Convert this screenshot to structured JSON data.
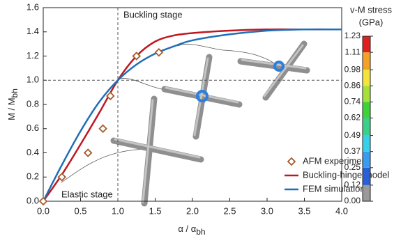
{
  "chart_data": {
    "type": "line",
    "xlabel": {
      "text": "α / α",
      "subscript": "bh"
    },
    "ylabel": {
      "text": "M / M",
      "subscript": "bh"
    },
    "xlim": [
      0,
      4
    ],
    "ylim": [
      0,
      1.6
    ],
    "xticks": [
      {
        "value": 0,
        "label": "0.0"
      },
      {
        "value": 0.5,
        "label": "0.5"
      },
      {
        "value": 1,
        "label": "1.0"
      },
      {
        "value": 1.5,
        "label": "1.5"
      },
      {
        "value": 2,
        "label": "2.0"
      },
      {
        "value": 2.5,
        "label": "2.5"
      },
      {
        "value": 3,
        "label": "3.0"
      },
      {
        "value": 3.5,
        "label": "3.5"
      },
      {
        "value": 4,
        "label": "4.0"
      }
    ],
    "yticks": [
      {
        "value": 0,
        "label": "0.0"
      },
      0.2,
      0.4,
      0.6,
      0.8,
      {
        "value": 1,
        "label": "1.0"
      },
      1.2,
      1.4,
      1.6
    ],
    "reference_lines": {
      "x": 1,
      "y": 1
    },
    "annotations": [
      "Buckling stage",
      "Elastic stage"
    ],
    "legend": "lower right",
    "series": [
      {
        "name": "AFM experiment",
        "type": "scatter",
        "color": "#a65a2a",
        "x": [
          0,
          0.25,
          0.6,
          0.8,
          0.9,
          1.25,
          1.55
        ],
        "values": [
          0,
          0.2,
          0.4,
          0.6,
          0.87,
          1.2,
          1.23
        ]
      },
      {
        "name": "Buckling-hinge model",
        "type": "line",
        "color": "#c0161f",
        "x": [
          0,
          0.25,
          0.5,
          0.75,
          1,
          1.25,
          1.5,
          1.75,
          2,
          2.5,
          3,
          3.5,
          4
        ],
        "values": [
          0,
          0.22,
          0.47,
          0.73,
          1.0,
          1.2,
          1.32,
          1.37,
          1.39,
          1.41,
          1.42,
          1.42,
          1.42
        ]
      },
      {
        "name": "FEM simulation",
        "type": "line",
        "color": "#1f6fb8",
        "x": [
          0,
          0.25,
          0.5,
          0.75,
          1,
          1.25,
          1.5,
          1.75,
          2,
          2.5,
          3,
          3.5,
          4
        ],
        "values": [
          0,
          0.3,
          0.58,
          0.82,
          1.0,
          1.13,
          1.22,
          1.28,
          1.33,
          1.38,
          1.41,
          1.42,
          1.42
        ]
      }
    ],
    "colorbar": {
      "title": [
        "v-M stress",
        "(GPa)"
      ],
      "ticks": [
        {
          "value": 0,
          "label": "0.00"
        },
        {
          "value": 0.12,
          "label": "0.12"
        },
        {
          "value": 0.25,
          "label": "0.25"
        },
        {
          "value": 0.37,
          "label": "0.37"
        },
        {
          "value": 0.49,
          "label": "0.49"
        },
        {
          "value": 0.62,
          "label": "0.62"
        },
        {
          "value": 0.74,
          "label": "0.74"
        },
        {
          "value": 0.86,
          "label": "0.86"
        },
        {
          "value": 0.98,
          "label": "0.98"
        },
        {
          "value": 1.11,
          "label": "1.11"
        },
        {
          "value": 1.23,
          "label": "1.23"
        }
      ],
      "colors": [
        "#9a9a9a",
        "#2a5fd6",
        "#3a9cf0",
        "#36d1e8",
        "#3ad08a",
        "#3fd23a",
        "#a6e03a",
        "#f2e43a",
        "#f4a12a",
        "#e02020"
      ]
    }
  }
}
